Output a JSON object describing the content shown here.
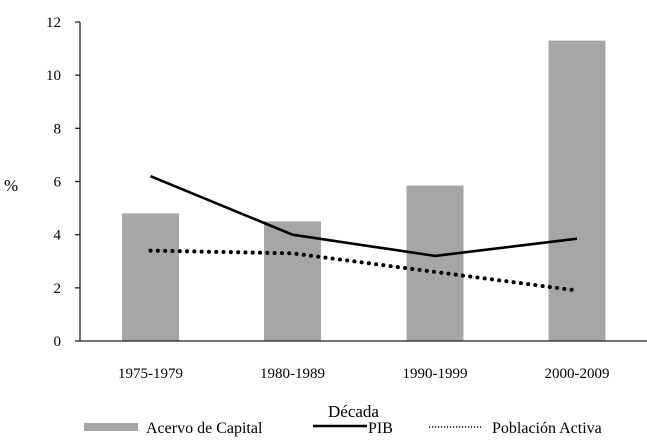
{
  "chart_data": {
    "type": "bar",
    "title": "",
    "xlabel": "Década",
    "ylabel": "%",
    "ylim": [
      0,
      12
    ],
    "yticks": [
      0,
      2,
      4,
      6,
      8,
      10,
      12
    ],
    "grid": false,
    "legend_position": "bottom",
    "categories": [
      "1975-1979",
      "1980-1989",
      "1990-1999",
      "2000-2009"
    ],
    "series": [
      {
        "name": "Acervo de Capital",
        "type": "bar",
        "color": "#a6a6a6",
        "values": [
          4.8,
          4.5,
          5.85,
          11.3
        ]
      },
      {
        "name": "PIB",
        "type": "line",
        "style": "solid",
        "color": "#000000",
        "values": [
          6.2,
          4.0,
          3.2,
          3.85
        ]
      },
      {
        "name": "Población Activa",
        "type": "line",
        "style": "dotted",
        "color": "#000000",
        "values": [
          3.4,
          3.3,
          2.6,
          1.9
        ]
      }
    ]
  },
  "axis": {
    "y_label": "%",
    "x_label": "Década",
    "y_ticks": [
      "0",
      "2",
      "4",
      "6",
      "8",
      "10",
      "12"
    ],
    "x_ticks": [
      "1975-1979",
      "1980-1989",
      "1990-1999",
      "2000-2009"
    ]
  },
  "legend": {
    "items": [
      {
        "label": "Acervo de Capital"
      },
      {
        "label": "PIB"
      },
      {
        "label": "Población Activa"
      }
    ]
  }
}
